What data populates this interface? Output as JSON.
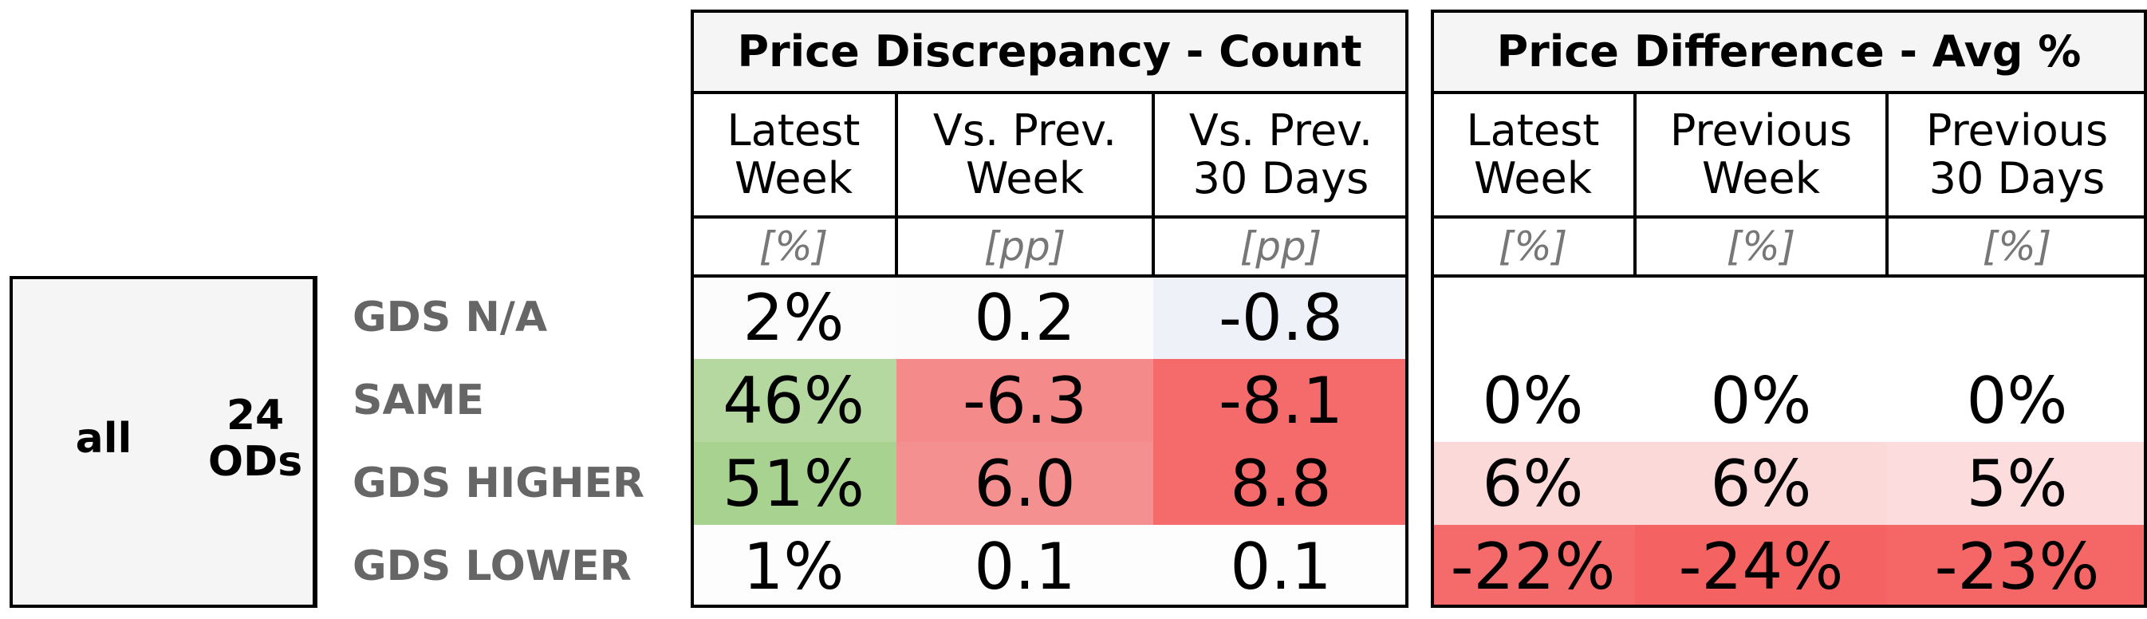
{
  "chart_data": {
    "type": "table",
    "group": "all",
    "subgroup": "24\nODs",
    "row_labels": [
      "GDS N/A",
      "SAME",
      "GDS HIGHER",
      "GDS LOWER"
    ],
    "sections": [
      {
        "title": "Price Discrepancy - Count",
        "columns": [
          {
            "header": "Latest\nWeek",
            "unit": "[%]"
          },
          {
            "header": "Vs. Prev.\nWeek",
            "unit": "[pp]"
          },
          {
            "header": "Vs. Prev.\n30 Days",
            "unit": "[pp]"
          }
        ],
        "rows": [
          [
            "2%",
            "0.2",
            "-0.8"
          ],
          [
            "46%",
            "-6.3",
            "-8.1"
          ],
          [
            "51%",
            "6.0",
            "8.8"
          ],
          [
            "1%",
            "0.1",
            "0.1"
          ]
        ],
        "colors": [
          [
            "#fcfcfc",
            "#fcfbfb",
            "#eef2f8"
          ],
          [
            "#b4d89f",
            "#f58a8a",
            "#f56b6b"
          ],
          [
            "#a8d290",
            "#f59090",
            "#f56a6a"
          ],
          [
            "#fdfdfd",
            "#fdfdfd",
            "#fdfdfd"
          ]
        ]
      },
      {
        "title": "Price Difference - Avg %",
        "columns": [
          {
            "header": "Latest\nWeek",
            "unit": "[%]"
          },
          {
            "header": "Previous\nWeek",
            "unit": "[%]"
          },
          {
            "header": "Previous\n30 Days",
            "unit": "[%]"
          }
        ],
        "rows": [
          [
            "",
            "",
            ""
          ],
          [
            "0%",
            "0%",
            "0%"
          ],
          [
            "6%",
            "6%",
            "5%"
          ],
          [
            "-22%",
            "-24%",
            "-23%"
          ]
        ],
        "colors": [
          [
            "#ffffff",
            "#ffffff",
            "#ffffff"
          ],
          [
            "#ffffff",
            "#ffffff",
            "#ffffff"
          ],
          [
            "#fcd9d9",
            "#fcd9d9",
            "#fcdcdc"
          ],
          [
            "#f56a6a",
            "#f56262",
            "#f56767"
          ]
        ]
      }
    ]
  }
}
